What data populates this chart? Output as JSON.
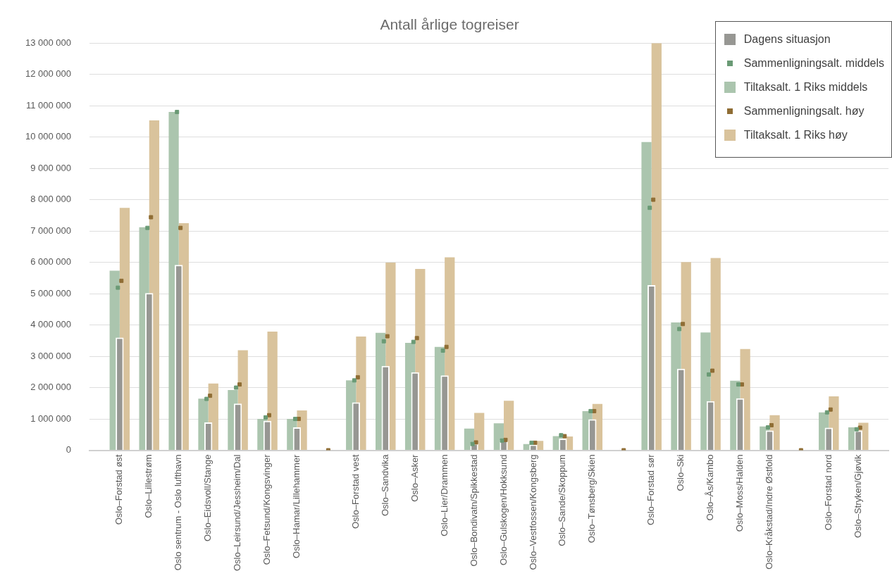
{
  "chart_data": {
    "type": "bar",
    "title": "Antall årlige togreiser",
    "categories": [
      "Oslo–Forstad øst",
      "Oslo–Lillestrøm",
      "Oslo sentrum - Oslo lufthavn",
      "Oslo–Eidsvoll/Stange",
      "Oslo–Leirsund/Jessheim/Dal",
      "Oslo–Fetsund/Kongsvinger",
      "Oslo–Hamar/Lillehammer",
      null,
      "Oslo–Forstad vest",
      "Oslo–Sandvika",
      "Oslo–Asker",
      "Oslo–Lier/Drammen",
      "Oslo–Bondivatn/Spikkestad",
      "Oslo–Gulskogen/Hokksund",
      "Oslo–Vestfossen/Kongsberg",
      "Oslo–Sande/Skoppum",
      "Oslo–Tønsberg/Skien",
      null,
      "Oslo–Forstad sør",
      "Oslo–Ski",
      "Oslo–Ås/Kambo",
      "Oslo–Moss/Halden",
      "Oslo–Kråkstad/Indre Østfold",
      null,
      "Oslo–Forstad nord",
      "Oslo–Stryken/Gjøvik"
    ],
    "ylim": [
      0,
      13000000
    ],
    "yticks": [
      {
        "value": 0,
        "label": "0"
      },
      {
        "value": 1000000,
        "label": "1 000 000"
      },
      {
        "value": 2000000,
        "label": "2 000 000"
      },
      {
        "value": 3000000,
        "label": "3 000 000"
      },
      {
        "value": 4000000,
        "label": "4 000 000"
      },
      {
        "value": 5000000,
        "label": "5 000 000"
      },
      {
        "value": 6000000,
        "label": "6 000 000"
      },
      {
        "value": 7000000,
        "label": "7 000 000"
      },
      {
        "value": 8000000,
        "label": "8 000 000"
      },
      {
        "value": 9000000,
        "label": "9 000 000"
      },
      {
        "value": 10000000,
        "label": "10 000 000"
      },
      {
        "value": 11000000,
        "label": "11 000 000"
      },
      {
        "value": 12000000,
        "label": "12 000 000"
      },
      {
        "value": 13000000,
        "label": "13 000 000"
      }
    ],
    "grid": "y",
    "legend": "top right",
    "series": [
      {
        "name": "Dagens situasjon",
        "color": "#979793",
        "values": [
          3600000,
          5020000,
          5920000,
          890000,
          1490000,
          940000,
          730000,
          null,
          1530000,
          2690000,
          2490000,
          2390000,
          220000,
          340000,
          180000,
          370000,
          990000,
          null,
          5270000,
          2600000,
          1570000,
          1660000,
          630000,
          null,
          720000,
          630000
        ]
      },
      {
        "name": "Sammenligningsalt. middels",
        "type": "scatter",
        "marker": "square",
        "color": "#6a9a75",
        "values": [
          5190000,
          7100000,
          10800000,
          1640000,
          2000000,
          1050000,
          1000000,
          null,
          2230000,
          3480000,
          3460000,
          3180000,
          200000,
          310000,
          240000,
          480000,
          1250000,
          null,
          7740000,
          3870000,
          2420000,
          2100000,
          730000,
          null,
          1210000,
          670000
        ]
      },
      {
        "name": "Tiltaksalt. 1 Riks middels",
        "color": "#abc5ae",
        "values": [
          5730000,
          7120000,
          10800000,
          1650000,
          1920000,
          1000000,
          1000000,
          null,
          2230000,
          3750000,
          3430000,
          3300000,
          690000,
          860000,
          200000,
          450000,
          1250000,
          null,
          9840000,
          4080000,
          3760000,
          2220000,
          760000,
          null,
          1210000,
          730000
        ]
      },
      {
        "name": "Sammenligningsalt. høy",
        "type": "scatter",
        "marker": "square",
        "color": "#8f6d34",
        "values": [
          5410000,
          7440000,
          7100000,
          1740000,
          2100000,
          1120000,
          1000000,
          0,
          2330000,
          3640000,
          3580000,
          3300000,
          250000,
          330000,
          240000,
          450000,
          1250000,
          0,
          8000000,
          4030000,
          2540000,
          2100000,
          800000,
          0,
          1300000,
          720000
        ]
      },
      {
        "name": "Tiltaksalt. 1 Riks høy",
        "color": "#d9c39c",
        "values": [
          7740000,
          10530000,
          7250000,
          2130000,
          3190000,
          3790000,
          1270000,
          null,
          3630000,
          5990000,
          5790000,
          6160000,
          1190000,
          1580000,
          300000,
          440000,
          1480000,
          null,
          13000000,
          6010000,
          6140000,
          3230000,
          1120000,
          null,
          1720000,
          880000
        ]
      }
    ]
  }
}
